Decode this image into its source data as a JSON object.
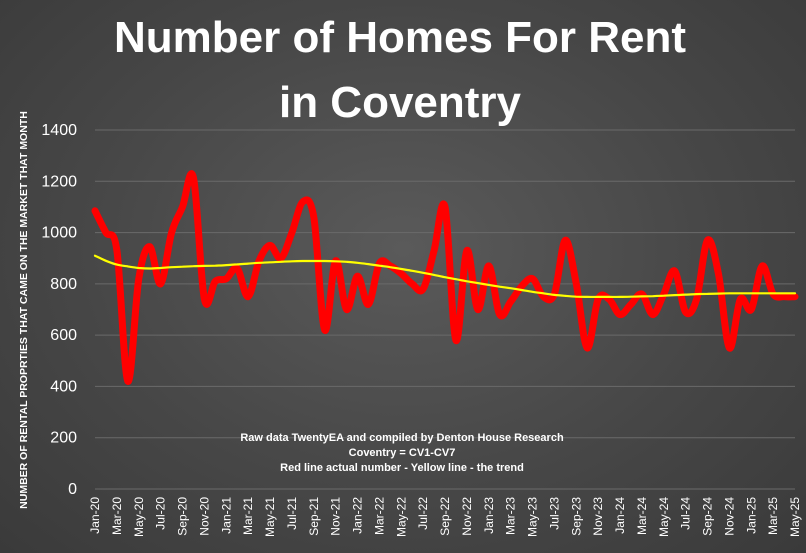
{
  "chart_data": {
    "type": "line",
    "title": [
      "Number of Homes For Rent",
      "in Coventry"
    ],
    "ylabel": "NUMBER OF RENTAL PROPRTIES THAT CAME ON THE MARKET THAT MONTH",
    "ylim": [
      0,
      1400
    ],
    "yticks": [
      0,
      200,
      400,
      600,
      800,
      1000,
      1200,
      1400
    ],
    "grid": true,
    "x_labels": [
      "Jan-20",
      "Mar-20",
      "May-20",
      "Jul-20",
      "Sep-20",
      "Nov-20",
      "Jan-21",
      "Mar-21",
      "May-21",
      "Jul-21",
      "Sep-21",
      "Nov-21",
      "Jan-22",
      "Mar-22",
      "May-22",
      "Jul-22",
      "Sep-22",
      "Nov-22",
      "Jan-23",
      "Mar-23",
      "May-23",
      "Jul-23",
      "Sep-23",
      "Nov-23",
      "Jan-24",
      "Mar-24",
      "May-24",
      "Jul-24",
      "Sep-24",
      "Nov-24",
      "Jan-25",
      "Mar-25",
      "May-25"
    ],
    "x": [
      "Jan-20",
      "Feb-20",
      "Mar-20",
      "Apr-20",
      "May-20",
      "Jun-20",
      "Jul-20",
      "Aug-20",
      "Sep-20",
      "Oct-20",
      "Nov-20",
      "Dec-20",
      "Jan-21",
      "Feb-21",
      "Mar-21",
      "Apr-21",
      "May-21",
      "Jun-21",
      "Jul-21",
      "Aug-21",
      "Sep-21",
      "Oct-21",
      "Nov-21",
      "Dec-21",
      "Jan-22",
      "Feb-22",
      "Mar-22",
      "Apr-22",
      "May-22",
      "Jun-22",
      "Jul-22",
      "Aug-22",
      "Sep-22",
      "Oct-22",
      "Nov-22",
      "Dec-22",
      "Jan-23",
      "Feb-23",
      "Mar-23",
      "Apr-23",
      "May-23",
      "Jun-23",
      "Jul-23",
      "Aug-23",
      "Sep-23",
      "Oct-23",
      "Nov-23",
      "Dec-23",
      "Jan-24",
      "Feb-24",
      "Mar-24",
      "Apr-24",
      "May-24",
      "Jun-24",
      "Jul-24",
      "Aug-24",
      "Sep-24",
      "Oct-24",
      "Nov-24",
      "Dec-24",
      "Jan-25",
      "Feb-25",
      "Mar-25",
      "Apr-25",
      "May-25"
    ],
    "series": [
      {
        "color": "#ff0000",
        "values": [
          1085,
          1000,
          930,
          420,
          820,
          945,
          800,
          1000,
          1100,
          1215,
          740,
          810,
          820,
          860,
          750,
          890,
          950,
          900,
          1000,
          1120,
          1060,
          620,
          890,
          700,
          830,
          720,
          880,
          870,
          840,
          800,
          780,
          930,
          1100,
          580,
          930,
          700,
          870,
          680,
          730,
          790,
          820,
          750,
          760,
          970,
          800,
          550,
          740,
          740,
          680,
          720,
          760,
          680,
          760,
          850,
          690,
          740,
          970,
          840,
          550,
          740,
          700,
          870,
          760,
          750,
          750
        ]
      },
      {
        "color": "#ffff00",
        "values": [
          910,
          890,
          875,
          868,
          862,
          860,
          862,
          865,
          867,
          869,
          870,
          871,
          873,
          876,
          879,
          882,
          884,
          886,
          888,
          889,
          889,
          889,
          888,
          886,
          882,
          877,
          871,
          865,
          858,
          851,
          843,
          835,
          826,
          818,
          810,
          803,
          796,
          789,
          783,
          776,
          769,
          763,
          757,
          753,
          750,
          749,
          749,
          749,
          749,
          750,
          751,
          752,
          754,
          756,
          758,
          760,
          761,
          762,
          763,
          763,
          763,
          763,
          763,
          763,
          763
        ]
      }
    ]
  },
  "annotations": [
    "Raw data TwentyEA and compiled by Denton House Research",
    "Coventry = CV1-CV7",
    "Red line actual number - Yellow line  - the trend"
  ]
}
